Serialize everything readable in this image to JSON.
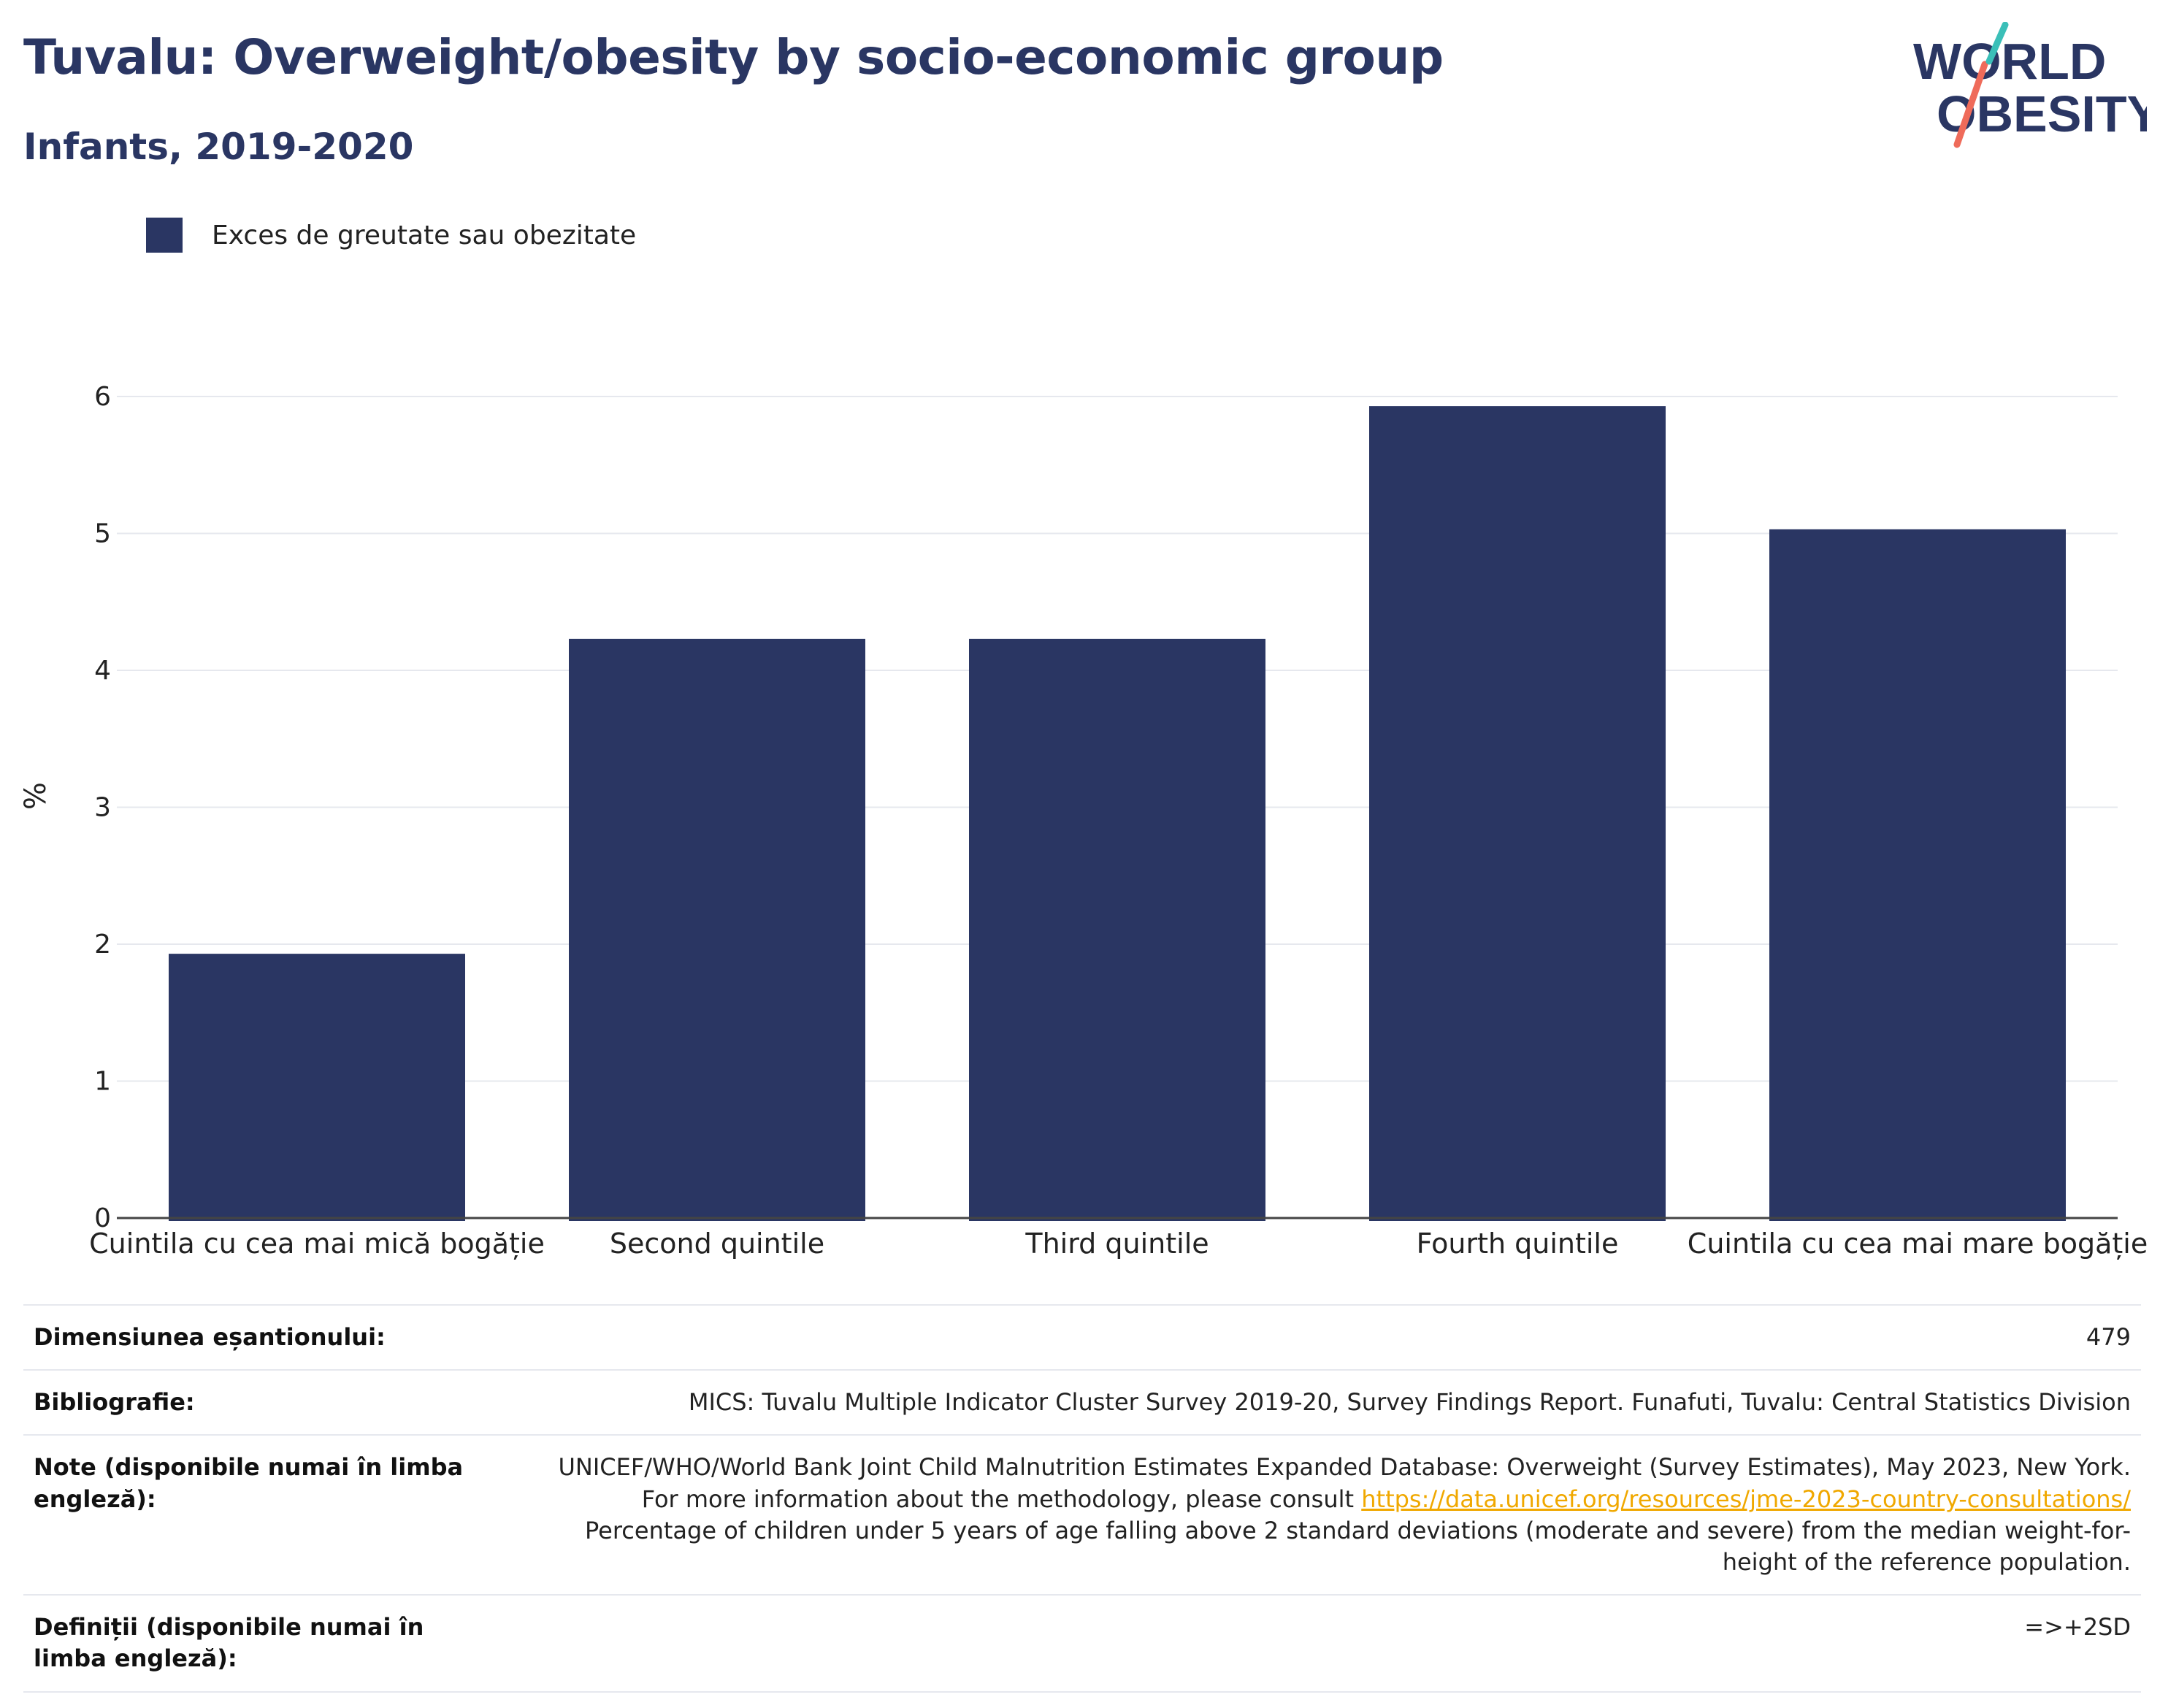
{
  "header": {
    "title": "Tuvalu: Overweight/obesity by socio-economic group",
    "subtitle": "Infants, 2019-2020"
  },
  "logo": {
    "line1": "WORLD",
    "line2": "OBESITY",
    "colors": {
      "navy": "#2a3663",
      "teal": "#3bbfb8",
      "coral": "#ef6b5a"
    }
  },
  "colors": {
    "bar": "#2a3663",
    "grid": "#e6e8ee",
    "axis": "#444444",
    "link": "#f0a800"
  },
  "chart_data": {
    "type": "bar",
    "title": "Tuvalu: Overweight/obesity by socio-economic group",
    "subtitle": "Infants, 2019-2020",
    "categories": [
      "Cuintila cu cea mai mică bogăție",
      "Second quintile",
      "Third quintile",
      "Fourth quintile",
      "Cuintila cu cea mai mare bogăție"
    ],
    "series": [
      {
        "name": "Exces de greutate sau obezitate",
        "values": [
          1.93,
          4.23,
          4.23,
          5.93,
          5.03
        ]
      }
    ],
    "xlabel": "",
    "ylabel": "%",
    "ylim": [
      0,
      6.5
    ],
    "yticks": [
      0,
      1,
      2,
      3,
      4,
      5,
      6
    ],
    "grid": true,
    "legend_position": "top-left"
  },
  "meta": {
    "rows": [
      {
        "key": "Dimensiunea eșantionului:",
        "value": "479"
      },
      {
        "key": "Bibliografie:",
        "value": "MICS: Tuvalu Multiple Indicator Cluster Survey 2019-20, Survey Findings Report. Funafuti, Tuvalu: Central Statistics Division"
      },
      {
        "key": "Note (disponibile numai în limba engleză):",
        "value_pre": "UNICEF/WHO/World Bank Joint Child Malnutrition Estimates Expanded Database: Overweight (Survey Estimates), May 2023, New York. For more information about the methodology, please consult ",
        "link": "https://data.unicef.org/resources/jme-2023-country-consultations/",
        "value_post": "Percentage of children under 5 years of age falling above 2 standard deviations (moderate and severe) from the median weight-for-height of the reference population."
      },
      {
        "key": "Definiții (disponibile numai în limba engleză):",
        "value": "=>+2SD"
      }
    ]
  }
}
